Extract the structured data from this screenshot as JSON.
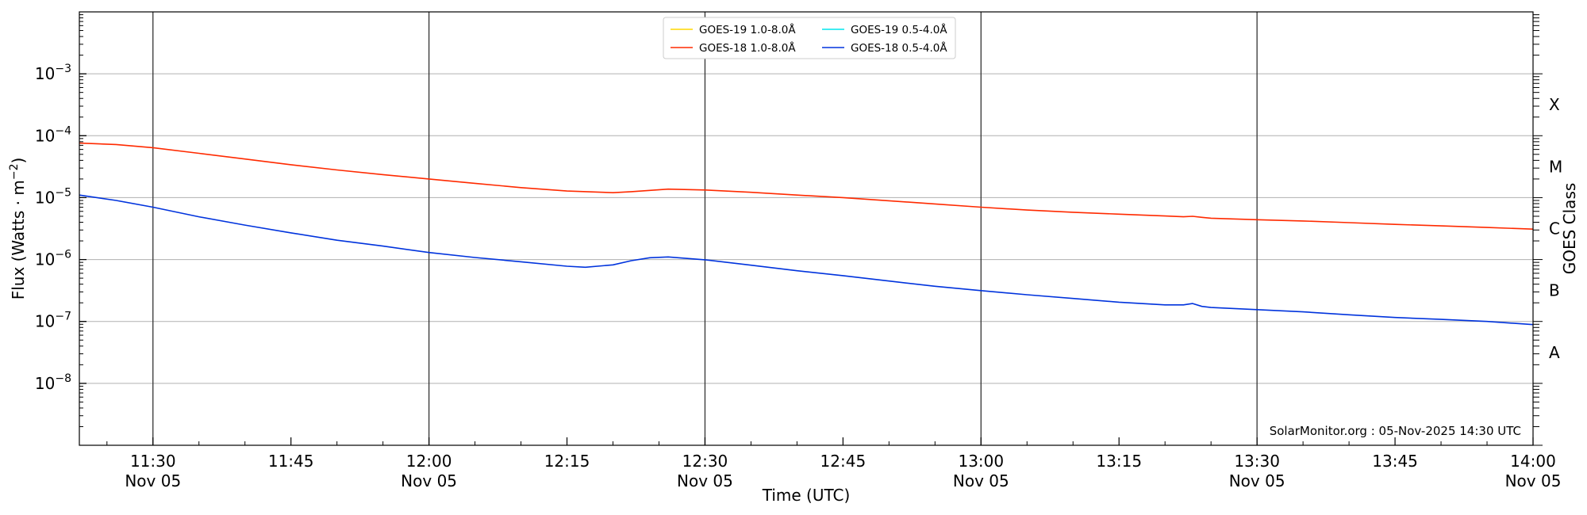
{
  "chart_data": {
    "type": "line",
    "xlabel": "Time (UTC)",
    "ylabel": "Flux (Watts · m",
    "ylabel_sup": "−2",
    "ylabel_close": ")",
    "right_axis_label": "GOES Class",
    "y_scale": "log",
    "ylim": [
      1e-09,
      0.01
    ],
    "xlim": [
      "11:22",
      "14:00"
    ],
    "grid": {
      "horizontal": true,
      "vertical_major_only": true
    },
    "legend_position": "top-center",
    "x_ticks": [
      {
        "t": "11:30",
        "time": "11:30",
        "date": "Nov 05",
        "major": true
      },
      {
        "t": "11:45",
        "time": "11:45",
        "date": "",
        "major": false
      },
      {
        "t": "12:00",
        "time": "12:00",
        "date": "Nov 05",
        "major": true
      },
      {
        "t": "12:15",
        "time": "12:15",
        "date": "",
        "major": false
      },
      {
        "t": "12:30",
        "time": "12:30",
        "date": "Nov 05",
        "major": true
      },
      {
        "t": "12:45",
        "time": "12:45",
        "date": "",
        "major": false
      },
      {
        "t": "13:00",
        "time": "13:00",
        "date": "Nov 05",
        "major": true
      },
      {
        "t": "13:15",
        "time": "13:15",
        "date": "",
        "major": false
      },
      {
        "t": "13:30",
        "time": "13:30",
        "date": "Nov 05",
        "major": true
      },
      {
        "t": "13:45",
        "time": "13:45",
        "date": "",
        "major": false
      },
      {
        "t": "14:00",
        "time": "14:00",
        "date": "Nov 05",
        "major": true
      }
    ],
    "y_ticks": [
      {
        "exp": -8,
        "label": "10",
        "sup": "−8"
      },
      {
        "exp": -7,
        "label": "10",
        "sup": "−7"
      },
      {
        "exp": -6,
        "label": "10",
        "sup": "−6"
      },
      {
        "exp": -5,
        "label": "10",
        "sup": "−5"
      },
      {
        "exp": -4,
        "label": "10",
        "sup": "−4"
      },
      {
        "exp": -3,
        "label": "10",
        "sup": "−3"
      }
    ],
    "goes_classes": [
      {
        "label": "A",
        "exp": -7.5
      },
      {
        "label": "B",
        "exp": -6.5
      },
      {
        "label": "C",
        "exp": -5.5
      },
      {
        "label": "M",
        "exp": -4.5
      },
      {
        "label": "X",
        "exp": -3.5
      }
    ],
    "legend": [
      {
        "name": "GOES-19 1.0-8.0Å",
        "color": "#ffd700"
      },
      {
        "name": "GOES-19 0.5-4.0Å",
        "color": "#00e5ee"
      },
      {
        "name": "GOES-18 1.0-8.0Å",
        "color": "#ff2a00"
      },
      {
        "name": "GOES-18 0.5-4.0Å",
        "color": "#0033dd"
      }
    ],
    "series": [
      {
        "name": "GOES-18 1.0-8.0Å",
        "color": "#ff2a00",
        "x": [
          "11:22",
          "11:26",
          "11:30",
          "11:35",
          "11:40",
          "11:45",
          "11:50",
          "11:55",
          "12:00",
          "12:05",
          "12:10",
          "12:15",
          "12:20",
          "12:22",
          "12:26",
          "12:30",
          "12:35",
          "12:40",
          "12:45",
          "12:50",
          "12:55",
          "13:00",
          "13:05",
          "13:10",
          "13:15",
          "13:20",
          "13:22",
          "13:23",
          "13:24",
          "13:25",
          "13:30",
          "13:35",
          "13:40",
          "13:45",
          "13:50",
          "13:55",
          "14:00"
        ],
        "y": [
          7.6e-05,
          7.2e-05,
          6.4e-05,
          5.2e-05,
          4.2e-05,
          3.4e-05,
          2.8e-05,
          2.35e-05,
          2e-05,
          1.7e-05,
          1.45e-05,
          1.28e-05,
          1.2e-05,
          1.25e-05,
          1.37e-05,
          1.33e-05,
          1.22e-05,
          1.1e-05,
          1e-05,
          8.9e-06,
          7.9e-06,
          7e-06,
          6.3e-06,
          5.8e-06,
          5.4e-06,
          5.05e-06,
          4.9e-06,
          5e-06,
          4.8e-06,
          4.65e-06,
          4.4e-06,
          4.2e-06,
          3.95e-06,
          3.7e-06,
          3.5e-06,
          3.3e-06,
          3.1e-06
        ]
      },
      {
        "name": "GOES-18 0.5-4.0Å",
        "color": "#0033dd",
        "x": [
          "11:22",
          "11:26",
          "11:30",
          "11:35",
          "11:40",
          "11:45",
          "11:50",
          "11:55",
          "12:00",
          "12:05",
          "12:10",
          "12:15",
          "12:17",
          "12:20",
          "12:22",
          "12:24",
          "12:26",
          "12:30",
          "12:35",
          "12:40",
          "12:45",
          "12:50",
          "12:55",
          "13:00",
          "13:05",
          "13:10",
          "13:15",
          "13:20",
          "13:22",
          "13:23",
          "13:24",
          "13:25",
          "13:30",
          "13:35",
          "13:40",
          "13:45",
          "13:50",
          "13:55",
          "14:00"
        ],
        "y": [
          1.1e-05,
          9e-06,
          7e-06,
          4.9e-06,
          3.6e-06,
          2.7e-06,
          2.05e-06,
          1.65e-06,
          1.3e-06,
          1.08e-06,
          9.2e-07,
          7.8e-07,
          7.5e-07,
          8.2e-07,
          9.6e-07,
          1.07e-06,
          1.1e-06,
          9.9e-07,
          8.1e-07,
          6.6e-07,
          5.5e-07,
          4.5e-07,
          3.7e-07,
          3.15e-07,
          2.7e-07,
          2.35e-07,
          2.05e-07,
          1.85e-07,
          1.85e-07,
          1.95e-07,
          1.75e-07,
          1.68e-07,
          1.55e-07,
          1.43e-07,
          1.28e-07,
          1.16e-07,
          1.08e-07,
          1e-07,
          8.9e-08
        ]
      }
    ]
  },
  "watermark": "SolarMonitor.org : 05-Nov-2025 14:30 UTC"
}
